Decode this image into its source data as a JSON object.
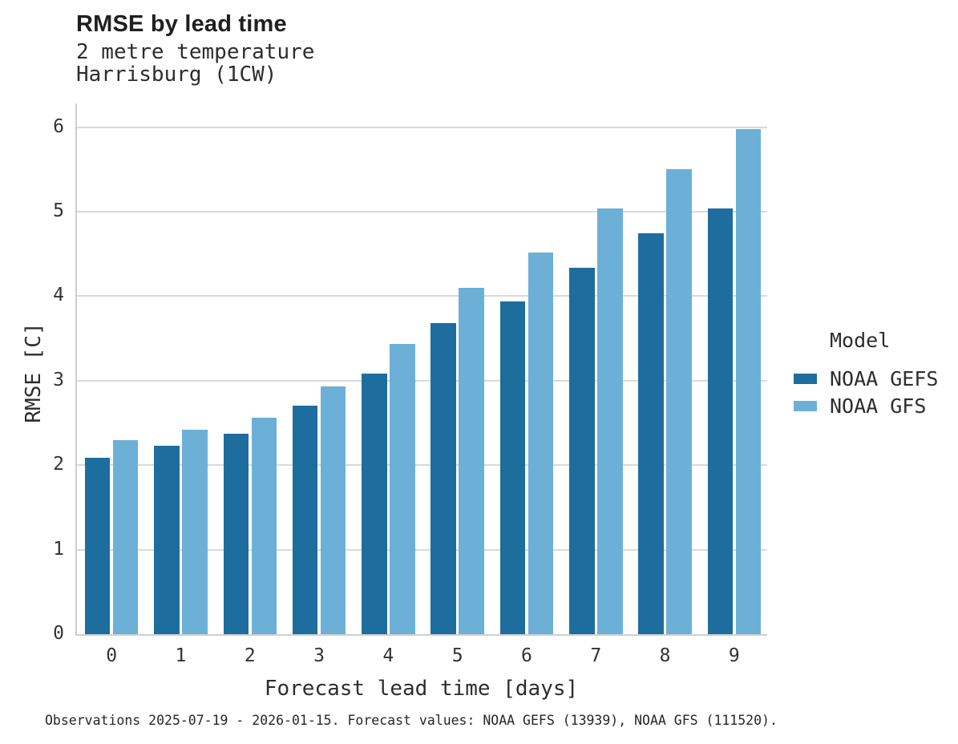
{
  "header": {
    "title": "RMSE by lead time",
    "subtitle_line1": "2 metre temperature",
    "subtitle_line2": "Harrisburg (1CW)"
  },
  "legend": {
    "title": "Model",
    "entries": [
      {
        "label": "NOAA GEFS",
        "color": "#1d6d9e"
      },
      {
        "label": "NOAA GFS",
        "color": "#6cb0d8"
      }
    ]
  },
  "caption": "Observations 2025-07-19 - 2026-01-15. Forecast values: NOAA GEFS (13939), NOAA GFS (111520).",
  "chart_data": {
    "type": "bar",
    "title": "RMSE by lead time",
    "subtitle": [
      "2 metre temperature",
      "Harrisburg (1CW)"
    ],
    "categories": [
      "0",
      "1",
      "2",
      "3",
      "4",
      "5",
      "6",
      "7",
      "8",
      "9"
    ],
    "series": [
      {
        "name": "NOAA GEFS",
        "color": "#1d6d9e",
        "values": [
          2.09,
          2.23,
          2.37,
          2.7,
          3.08,
          3.68,
          3.94,
          4.34,
          4.74,
          5.04
        ]
      },
      {
        "name": "NOAA GFS",
        "color": "#6cb0d8",
        "values": [
          2.3,
          2.42,
          2.56,
          2.93,
          3.43,
          4.1,
          4.52,
          5.04,
          5.5,
          5.98
        ]
      }
    ],
    "xlabel": "Forecast lead time [days]",
    "ylabel": "RMSE [C]",
    "ylim": [
      0,
      6.3
    ],
    "yticks": [
      0,
      1,
      2,
      3,
      4,
      5,
      6
    ],
    "grid": "horizontal",
    "legend_title": "Model",
    "legend_position": "right"
  }
}
